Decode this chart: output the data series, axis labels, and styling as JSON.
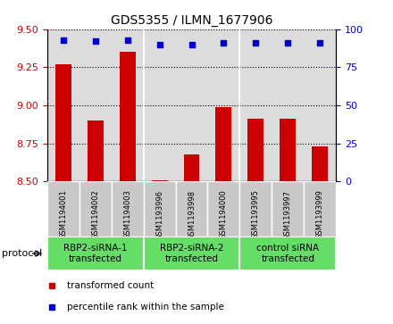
{
  "title": "GDS5355 / ILMN_1677906",
  "samples": [
    "GSM1194001",
    "GSM1194002",
    "GSM1194003",
    "GSM1193996",
    "GSM1193998",
    "GSM1194000",
    "GSM1193995",
    "GSM1193997",
    "GSM1193999"
  ],
  "red_values": [
    9.27,
    8.9,
    9.35,
    8.51,
    8.68,
    8.99,
    8.91,
    8.91,
    8.73
  ],
  "blue_values": [
    93,
    92,
    93,
    90,
    90,
    91,
    91,
    91,
    91
  ],
  "ylim_left": [
    8.5,
    9.5
  ],
  "ylim_right": [
    0,
    100
  ],
  "yticks_left": [
    8.5,
    8.75,
    9.0,
    9.25,
    9.5
  ],
  "yticks_right": [
    0,
    25,
    50,
    75,
    100
  ],
  "groups": [
    {
      "label": "RBP2-siRNA-1\ntransfected",
      "start": 0,
      "end": 3
    },
    {
      "label": "RBP2-siRNA-2\ntransfected",
      "start": 3,
      "end": 6
    },
    {
      "label": "control siRNA\ntransfected",
      "start": 6,
      "end": 9
    }
  ],
  "protocol_label": "protocol",
  "legend_red": "transformed count",
  "legend_blue": "percentile rank within the sample",
  "bar_color": "#CC0000",
  "dot_color": "#0000CC",
  "bar_bottom": 8.5,
  "plot_bg_color": "#DCDCDC",
  "sample_box_color": "#C8C8C8",
  "group_box_color": "#66DD66",
  "tick_color_left": "#CC0000",
  "tick_color_right": "#0000CC",
  "title_fontsize": 10,
  "tick_fontsize": 8,
  "sample_fontsize": 6,
  "group_fontsize": 7.5,
  "legend_fontsize": 7.5
}
